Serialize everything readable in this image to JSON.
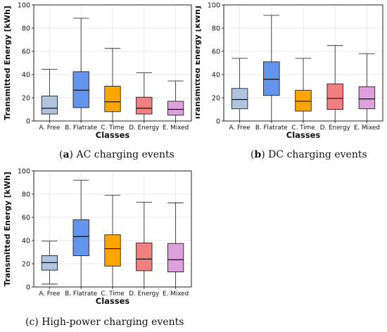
{
  "chart_data": [
    {
      "type": "box",
      "categories": [
        "A. Free",
        "B. Flatrate",
        "C. Time",
        "D. Energy",
        "E. Mixed"
      ],
      "colors": [
        "#b0c4de",
        "#6495ed",
        "#ffa500",
        "#f08080",
        "#dda0dd"
      ],
      "boxes": [
        {
          "whisker_low": 0,
          "q1": 6,
          "median": 11,
          "q3": 21.5,
          "whisker_high": 44.5
        },
        {
          "whisker_low": 0,
          "q1": 11.5,
          "median": 26.5,
          "q3": 42.5,
          "whisker_high": 88.5
        },
        {
          "whisker_low": 0,
          "q1": 8,
          "median": 16.5,
          "q3": 30,
          "whisker_high": 62.5
        },
        {
          "whisker_low": 0,
          "q1": 6,
          "median": 11,
          "q3": 20.5,
          "whisker_high": 41.5
        },
        {
          "whisker_low": 0,
          "q1": 5,
          "median": 10,
          "q3": 17,
          "whisker_high": 34.5
        }
      ],
      "xlabel": "Classes",
      "ylabel": "Transmitted Energy [kWh]",
      "ylim": [
        0,
        100
      ],
      "yticks": [
        0,
        20,
        40,
        60,
        80,
        100
      ],
      "grid": true,
      "caption_letter": "(a)",
      "caption_text": " AC charging events"
    },
    {
      "type": "box",
      "categories": [
        "A. Free",
        "B. Flatrate",
        "C. Time",
        "D. Energy",
        "E. Mixed"
      ],
      "colors": [
        "#b0c4de",
        "#6495ed",
        "#ffa500",
        "#f08080",
        "#dda0dd"
      ],
      "boxes": [
        {
          "whisker_low": 0,
          "q1": 10.5,
          "median": 18.5,
          "q3": 28,
          "whisker_high": 54
        },
        {
          "whisker_low": 0,
          "q1": 22,
          "median": 36,
          "q3": 51,
          "whisker_high": 91
        },
        {
          "whisker_low": 0,
          "q1": 8.5,
          "median": 17,
          "q3": 26.5,
          "whisker_high": 54
        },
        {
          "whisker_low": 0,
          "q1": 10,
          "median": 19.5,
          "q3": 32,
          "whisker_high": 65
        },
        {
          "whisker_low": 0,
          "q1": 10.5,
          "median": 19,
          "q3": 29.5,
          "whisker_high": 58
        }
      ],
      "xlabel": "Classes",
      "ylabel": "Transmitted Energy [kWh]",
      "ylim": [
        0,
        100
      ],
      "yticks": [
        0,
        20,
        40,
        60,
        80,
        100
      ],
      "grid": true,
      "caption_letter": "(b)",
      "caption_text": " DC charging events"
    },
    {
      "type": "box",
      "categories": [
        "A. Free",
        "B. Flatrate",
        "C. Time",
        "D. Energy",
        "E. Mixed"
      ],
      "colors": [
        "#b0c4de",
        "#6495ed",
        "#ffa500",
        "#f08080",
        "#dda0dd"
      ],
      "boxes": [
        {
          "whisker_low": 2.5,
          "q1": 14.5,
          "median": 21,
          "q3": 27,
          "whisker_high": 39.5
        },
        {
          "whisker_low": 0,
          "q1": 27,
          "median": 43.5,
          "q3": 58,
          "whisker_high": 92
        },
        {
          "whisker_low": 0,
          "q1": 18,
          "median": 33,
          "q3": 45,
          "whisker_high": 79
        },
        {
          "whisker_low": 0,
          "q1": 14,
          "median": 24,
          "q3": 38,
          "whisker_high": 73
        },
        {
          "whisker_low": 0,
          "q1": 13,
          "median": 23.5,
          "q3": 37.5,
          "whisker_high": 72.5
        }
      ],
      "xlabel": "Classes",
      "ylabel": "Transmitted Energy [kWh]",
      "ylim": [
        0,
        100
      ],
      "yticks": [
        0,
        20,
        40,
        60,
        80,
        100
      ],
      "grid": true,
      "caption_letter": "(c)",
      "caption_text": " High-power charging events"
    }
  ]
}
